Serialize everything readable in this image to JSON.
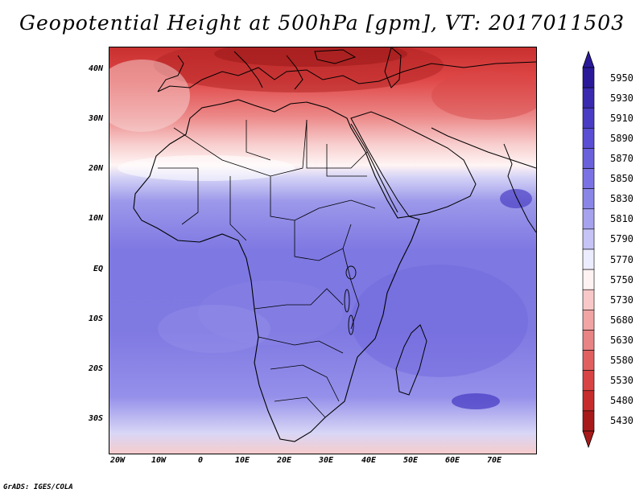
{
  "title": "Geopotential Height at 500hPa [gpm], VT: 2017011503",
  "credit": "GrADS: IGES/COLA",
  "lat_labels": [
    "40N",
    "30N",
    "20N",
    "10N",
    "EQ",
    "10S",
    "20S",
    "30S"
  ],
  "lon_labels": [
    "20W",
    "10W",
    "0",
    "10E",
    "20E",
    "30E",
    "40E",
    "50E",
    "60E",
    "70E"
  ],
  "colorbar": {
    "levels": [
      "5950",
      "5930",
      "5910",
      "5890",
      "5870",
      "5850",
      "5830",
      "5810",
      "5790",
      "5770",
      "5750",
      "5730",
      "5680",
      "5630",
      "5580",
      "5530",
      "5480",
      "5430"
    ],
    "colors": [
      "#2a1a9a",
      "#3a2ab0",
      "#4a3cc4",
      "#5a4ed4",
      "#6a60dc",
      "#7a72e4",
      "#8a86e8",
      "#a6a2ee",
      "#c6c4f6",
      "#ececff",
      "#fff2f2",
      "#f8c8c8",
      "#f0a4a4",
      "#e88484",
      "#e06060",
      "#d84444",
      "#c62c2c",
      "#a81a1a"
    ]
  },
  "icons": {
    "colorbar_top": "triangle-up-icon",
    "colorbar_bottom": "triangle-down-icon"
  }
}
